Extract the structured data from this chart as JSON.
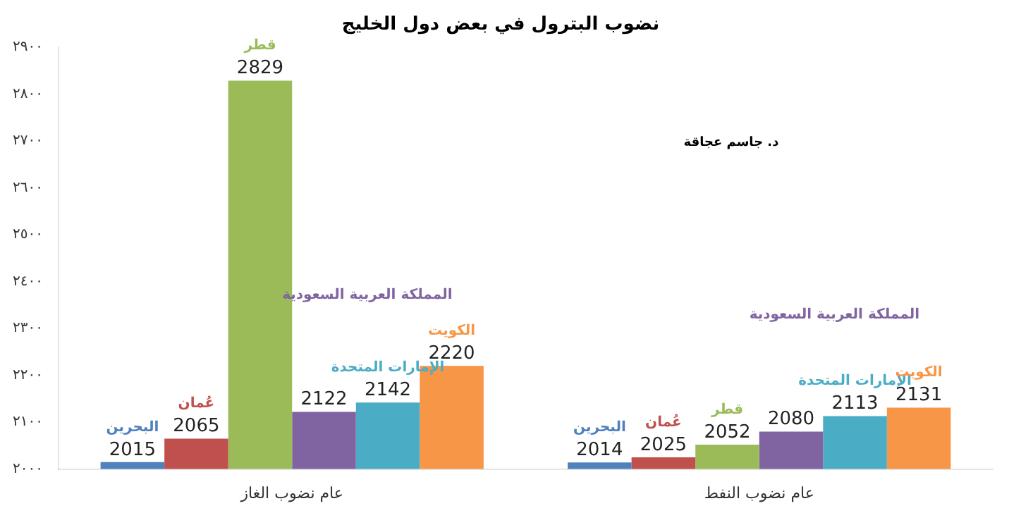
{
  "chart_data": {
    "type": "bar",
    "title": "نضوب البترول في بعض دول الخليج",
    "categories": [
      "عام نضوب الغاز",
      "عام نضوب النفط"
    ],
    "series": [
      {
        "name": "البحرين",
        "color": "#4f81bd",
        "values": [
          2015,
          2014
        ]
      },
      {
        "name": "عُمان",
        "color": "#c0504d",
        "values": [
          2065,
          2025
        ]
      },
      {
        "name": "قطر",
        "color": "#9bbb59",
        "values": [
          2829,
          2052
        ]
      },
      {
        "name": "المملكة العربية السعودية",
        "color": "#8064a2",
        "values": [
          2122,
          2080
        ]
      },
      {
        "name": "الإمارات المتحدة",
        "color": "#4bacc6",
        "values": [
          2142,
          2113
        ]
      },
      {
        "name": "الكويت",
        "color": "#f79646",
        "values": [
          2220,
          2131
        ]
      }
    ],
    "ylim": [
      2000,
      2900
    ],
    "yticks": [
      {
        "value": 2000,
        "label": "٢٠٠٠"
      },
      {
        "value": 2100,
        "label": "٢١٠٠"
      },
      {
        "value": 2200,
        "label": "٢٢٠٠"
      },
      {
        "value": 2300,
        "label": "٢٣٠٠"
      },
      {
        "value": 2400,
        "label": "٢٤٠٠"
      },
      {
        "value": 2500,
        "label": "٢٥٠٠"
      },
      {
        "value": 2600,
        "label": "٢٦٠٠"
      },
      {
        "value": 2700,
        "label": "٢٧٠٠"
      },
      {
        "value": 2800,
        "label": "٢٨٠٠"
      },
      {
        "value": 2900,
        "label": "٢٩٠٠"
      }
    ],
    "data_labels": true,
    "legend": false,
    "grid": false,
    "annotations": [
      "د. جاسم عجاقة"
    ]
  }
}
